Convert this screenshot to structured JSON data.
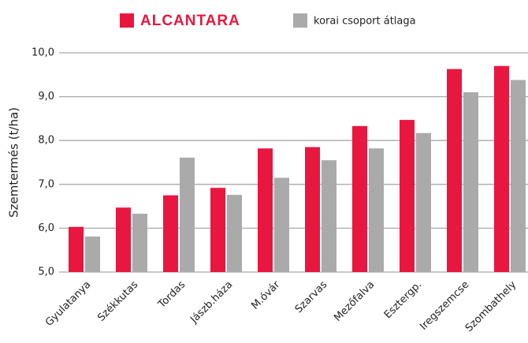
{
  "chart_data": {
    "type": "bar",
    "categories": [
      "Gyulatanya",
      "Székkutas",
      "Tordas",
      "Jászb.háza",
      "M.óvár",
      "Szarvas",
      "Mezőfalva",
      "Esztergp.",
      "Iregszemcse",
      "Szombathely"
    ],
    "series": [
      {
        "name": "ALCANTARA",
        "color": "#e8173f",
        "values": [
          6.03,
          6.47,
          6.75,
          6.92,
          7.82,
          7.85,
          8.33,
          8.47,
          9.63,
          9.7
        ]
      },
      {
        "name": "korai csoport átlaga",
        "color": "#aaaaab",
        "values": [
          5.81,
          6.33,
          7.61,
          6.76,
          7.15,
          7.55,
          7.82,
          8.17,
          9.1,
          9.38
        ]
      }
    ],
    "y_label": "Szemtermés  (t/ha)",
    "ylim": [
      5,
      10
    ],
    "yticks": [
      {
        "value": 5,
        "label": "5,0"
      },
      {
        "value": 6,
        "label": "6,0"
      },
      {
        "value": 7,
        "label": "7,0"
      },
      {
        "value": 8,
        "label": "8,0"
      },
      {
        "value": 9,
        "label": "9,0"
      },
      {
        "value": 10,
        "label": "10,0"
      }
    ],
    "grid": true,
    "legend": "top"
  }
}
